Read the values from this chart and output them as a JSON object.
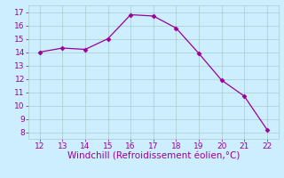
{
  "x": [
    12,
    13,
    14,
    15,
    16,
    17,
    18,
    19,
    20,
    21,
    22
  ],
  "y": [
    14.0,
    14.3,
    14.2,
    15.0,
    16.8,
    16.7,
    15.8,
    13.9,
    11.9,
    10.7,
    8.2
  ],
  "line_color": "#990099",
  "marker": "D",
  "marker_size": 2.5,
  "background_color": "#cceeff",
  "grid_color": "#aacccc",
  "xlabel": "Windchill (Refroidissement éolien,°C)",
  "xlabel_color": "#990099",
  "xlabel_fontsize": 7.5,
  "tick_color": "#990099",
  "tick_fontsize": 6.5,
  "xlim": [
    11.5,
    22.5
  ],
  "ylim": [
    7.5,
    17.5
  ],
  "xticks": [
    12,
    13,
    14,
    15,
    16,
    17,
    18,
    19,
    20,
    21,
    22
  ],
  "yticks": [
    8,
    9,
    10,
    11,
    12,
    13,
    14,
    15,
    16,
    17
  ]
}
